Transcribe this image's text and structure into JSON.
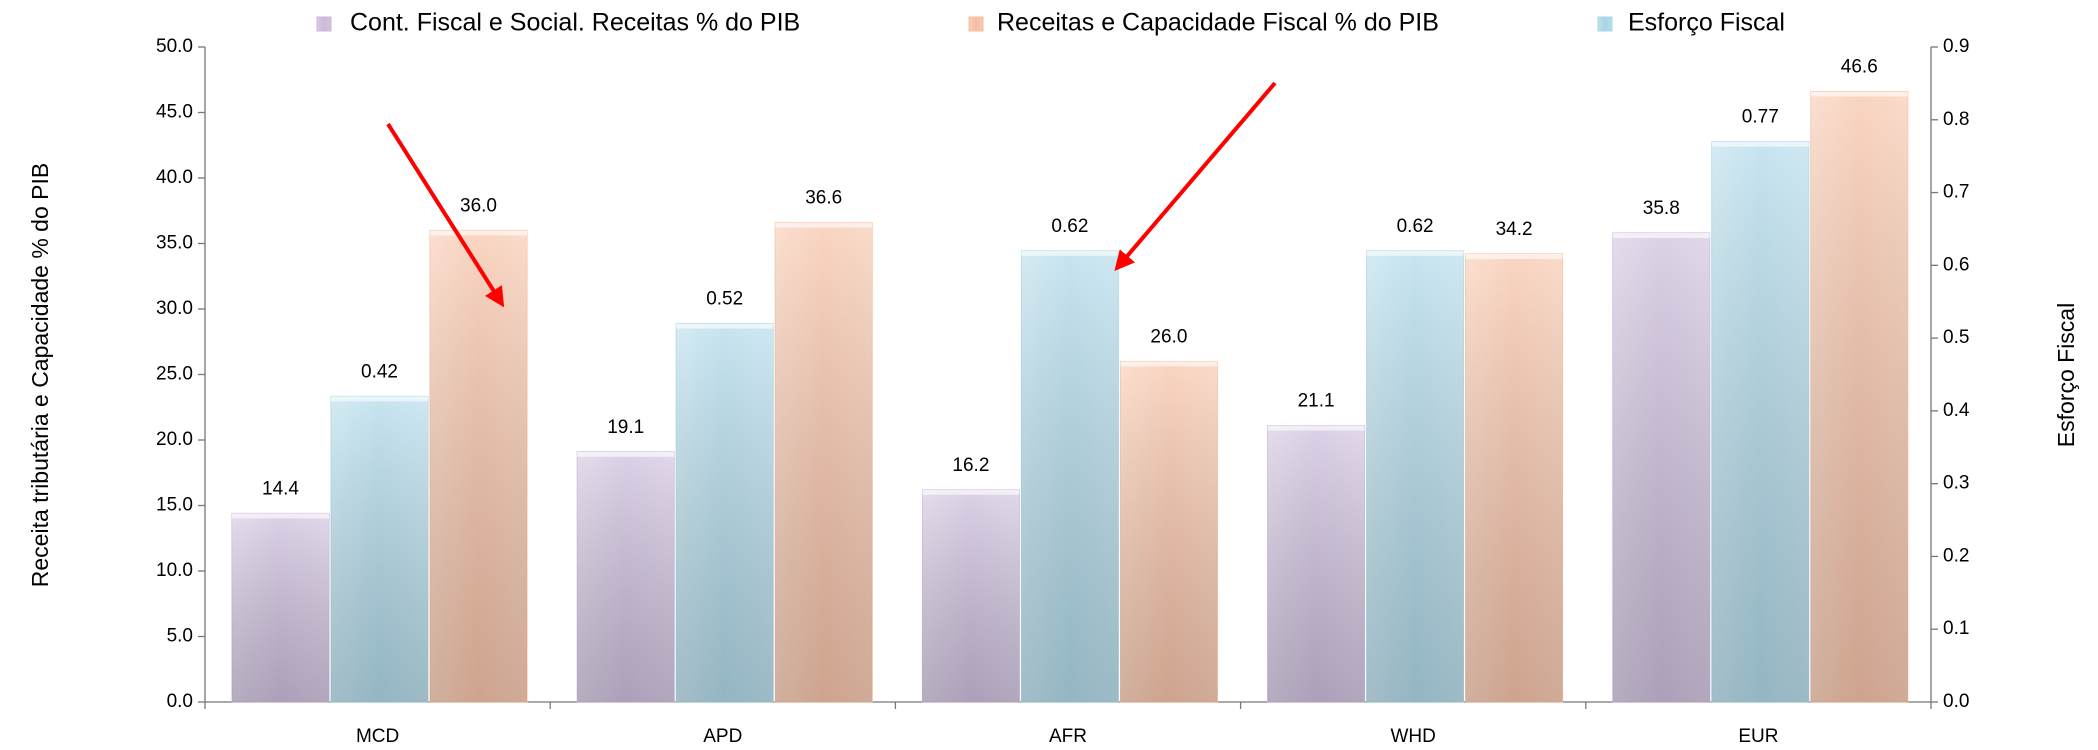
{
  "chart_data": {
    "type": "bar",
    "categories": [
      "MCD",
      "APD",
      "AFR",
      "WHD",
      "EUR"
    ],
    "series": [
      {
        "name": "Cont. Fiscal e Social. Receitas % do PIB",
        "color": "#c9b9da",
        "values": [
          14.4,
          19.1,
          16.2,
          21.1,
          35.8
        ]
      },
      {
        "name": "Esforço Fiscal",
        "color": "#a8d6e8",
        "axis": "y2",
        "values": [
          0.42,
          0.52,
          0.62,
          0.62,
          0.77
        ]
      },
      {
        "name": "Receitas e Capacidade Fiscal % do PIB",
        "color": "#f7bea0",
        "values": [
          36.0,
          36.6,
          26.0,
          34.2,
          46.6
        ],
        "value_labels": [
          "36.0",
          "36.6",
          "26.0",
          "34.2",
          "46.6"
        ]
      }
    ],
    "y_label": "Receita tributária e Capacidade % do PIB",
    "y2_label": "Esforço Fiscal",
    "ylim": [
      0,
      50
    ],
    "yticks": [
      {
        "value": 0,
        "label": "0.0"
      },
      {
        "value": 5,
        "label": "5.0"
      },
      {
        "value": 10,
        "label": "10.0"
      },
      {
        "value": 15,
        "label": "15.0"
      },
      {
        "value": 20,
        "label": "20.0"
      },
      {
        "value": 25,
        "label": "25.0"
      },
      {
        "value": 30,
        "label": "30.0"
      },
      {
        "value": 35,
        "label": "35.0"
      },
      {
        "value": 40,
        "label": "40.0"
      },
      {
        "value": 45,
        "label": "45.0"
      },
      {
        "value": 50,
        "label": "50.0"
      }
    ],
    "y2lim": [
      0,
      0.9
    ],
    "y2ticks": [
      {
        "value": 0,
        "label": "0.0"
      },
      0.1,
      0.2,
      0.3,
      0.4,
      0.5,
      0.6,
      0.7,
      0.8,
      0.9
    ],
    "legend": "top"
  }
}
